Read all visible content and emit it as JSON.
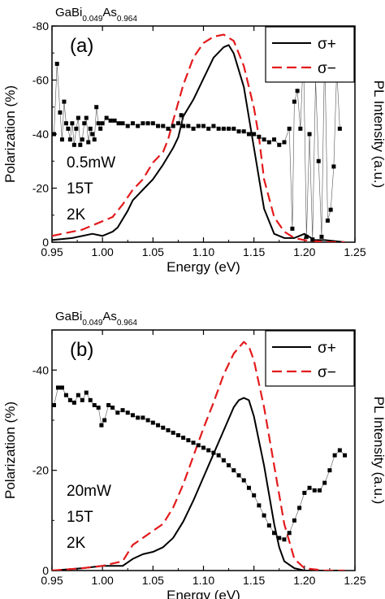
{
  "chart_data": [
    {
      "type": "line",
      "panel": "(a)",
      "title": {
        "base1": "GaBi",
        "sub1": "0.049",
        "base2": "As",
        "sub2": "0.964"
      },
      "conditions": [
        "0.5mW",
        "15T",
        "2K"
      ],
      "xlabel": "Energy (eV)",
      "ylabel": "Polarization (%)",
      "ylabel_right": "PL Intensity (a.u.)",
      "xlim": [
        0.95,
        1.25
      ],
      "ylim": [
        0,
        -80
      ],
      "xticks": [
        "0.95",
        "1.00",
        "1.05",
        "1.10",
        "1.15",
        "1.20",
        "1.25"
      ],
      "yticks": [
        "0",
        "-20",
        "-40",
        "-60",
        "-80"
      ],
      "legend": {
        "placement": "top-right",
        "items": [
          "σ+",
          "σ−"
        ]
      },
      "series": [
        {
          "name": "σ+",
          "axis": "right",
          "style": "solid",
          "color": "#000000",
          "x": [
            0.95,
            0.97,
            0.99,
            1.0,
            1.01,
            1.015,
            1.02,
            1.025,
            1.03,
            1.04,
            1.05,
            1.06,
            1.07,
            1.075,
            1.08,
            1.09,
            1.1,
            1.11,
            1.12,
            1.125,
            1.13,
            1.14,
            1.15,
            1.16,
            1.17,
            1.18,
            1.19,
            1.2,
            1.21,
            1.22,
            1.24
          ],
          "values": [
            0.01,
            0.02,
            0.04,
            0.03,
            0.05,
            0.07,
            0.11,
            0.15,
            0.2,
            0.25,
            0.3,
            0.37,
            0.45,
            0.5,
            0.6,
            0.68,
            0.78,
            0.88,
            0.93,
            0.94,
            0.9,
            0.74,
            0.45,
            0.16,
            0.04,
            0.02,
            0.02,
            0.04,
            0.01,
            0.01,
            0.0
          ]
        },
        {
          "name": "σ−",
          "axis": "right",
          "style": "dashed",
          "color": "#e31a1c",
          "x": [
            0.95,
            0.98,
            1.0,
            1.01,
            1.02,
            1.03,
            1.04,
            1.05,
            1.06,
            1.065,
            1.07,
            1.08,
            1.09,
            1.1,
            1.11,
            1.12,
            1.13,
            1.14,
            1.15,
            1.155,
            1.16,
            1.17,
            1.18,
            1.19,
            1.2,
            1.22,
            1.24
          ],
          "values": [
            0.03,
            0.06,
            0.1,
            0.12,
            0.18,
            0.25,
            0.3,
            0.38,
            0.43,
            0.49,
            0.58,
            0.75,
            0.88,
            0.95,
            0.98,
            0.99,
            0.96,
            0.84,
            0.64,
            0.5,
            0.3,
            0.12,
            0.05,
            0.02,
            0.01,
            0.0,
            0.0
          ]
        },
        {
          "name": "Polarization",
          "axis": "left",
          "style": "markers",
          "color": "#000000",
          "x": [
            0.952,
            0.955,
            0.958,
            0.96,
            0.962,
            0.964,
            0.966,
            0.968,
            0.97,
            0.972,
            0.974,
            0.976,
            0.978,
            0.98,
            0.982,
            0.984,
            0.986,
            0.988,
            0.99,
            0.992,
            0.994,
            0.996,
            0.998,
            1.0,
            1.004,
            1.008,
            1.012,
            1.016,
            1.02,
            1.025,
            1.03,
            1.035,
            1.04,
            1.045,
            1.05,
            1.055,
            1.06,
            1.065,
            1.07,
            1.075,
            1.078,
            1.08,
            1.085,
            1.09,
            1.095,
            1.1,
            1.105,
            1.11,
            1.115,
            1.12,
            1.125,
            1.13,
            1.135,
            1.14,
            1.145,
            1.15,
            1.155,
            1.16,
            1.165,
            1.17,
            1.175,
            1.18,
            1.185,
            1.188,
            1.19,
            1.193,
            1.196,
            1.199,
            1.202,
            1.205,
            1.208,
            1.211,
            1.214,
            1.217,
            1.22,
            1.223,
            1.226,
            1.229,
            1.232,
            1.235
          ],
          "values": [
            -40,
            -66,
            -48,
            -38,
            -52,
            -44,
            -42,
            -38,
            -44,
            -36,
            -42,
            -46,
            -36,
            -38,
            -44,
            -46,
            -37,
            -42,
            -40,
            -38,
            -50,
            -44,
            -42,
            -44,
            -46,
            -45,
            -45,
            -44,
            -44,
            -43,
            -44,
            -43,
            -44,
            -44,
            -44,
            -43,
            -43,
            -42,
            -43,
            -44,
            -47,
            -43,
            -43,
            -42,
            -43,
            -43,
            -42,
            -43,
            -42,
            -42,
            -42,
            -42,
            -41,
            -41,
            -40,
            -40,
            -39,
            -38,
            -37,
            -38,
            -36,
            -37,
            -42,
            -5,
            -52,
            -56,
            -42,
            -70,
            -2,
            -40,
            -1,
            -60,
            -30,
            -2,
            -72,
            -8,
            -12,
            -28,
            -64,
            -42
          ]
        }
      ]
    },
    {
      "type": "line",
      "panel": "(b)",
      "title": {
        "base1": "GaBi",
        "sub1": "0.049",
        "base2": "As",
        "sub2": "0.964"
      },
      "conditions": [
        "20mW",
        "15T",
        "2K"
      ],
      "xlabel": "Energy (eV)",
      "ylabel": "Polarization (%)",
      "ylabel_right": "PL Intensity (a.u.)",
      "xlim": [
        0.95,
        1.25
      ],
      "ylim": [
        0,
        -48
      ],
      "xticks": [
        "0.95",
        "1.00",
        "1.05",
        "1.10",
        "1.15",
        "1.20",
        "1.25"
      ],
      "yticks": [
        "0",
        "-20",
        "-40"
      ],
      "legend": {
        "placement": "top-right",
        "items": [
          "σ+",
          "σ−"
        ]
      },
      "series": [
        {
          "name": "σ+",
          "axis": "right",
          "style": "solid",
          "color": "#000000",
          "x": [
            0.95,
            0.98,
            1.0,
            1.02,
            1.03,
            1.04,
            1.05,
            1.06,
            1.07,
            1.08,
            1.09,
            1.1,
            1.11,
            1.12,
            1.13,
            1.135,
            1.14,
            1.145,
            1.15,
            1.16,
            1.17,
            1.175,
            1.18,
            1.19,
            1.2,
            1.22,
            1.24
          ],
          "values": [
            0.0,
            0.01,
            0.02,
            0.02,
            0.05,
            0.07,
            0.08,
            0.1,
            0.14,
            0.21,
            0.3,
            0.4,
            0.5,
            0.6,
            0.7,
            0.73,
            0.74,
            0.73,
            0.66,
            0.45,
            0.2,
            0.1,
            0.04,
            0.01,
            0.0,
            0.0,
            0.0
          ]
        },
        {
          "name": "σ−",
          "axis": "right",
          "style": "dashed",
          "color": "#e31a1c",
          "x": [
            0.95,
            0.98,
            1.0,
            1.02,
            1.03,
            1.04,
            1.05,
            1.06,
            1.07,
            1.08,
            1.09,
            1.1,
            1.11,
            1.12,
            1.13,
            1.14,
            1.145,
            1.15,
            1.16,
            1.17,
            1.18,
            1.19,
            1.2,
            1.22,
            1.24
          ],
          "values": [
            0.0,
            0.01,
            0.02,
            0.04,
            0.11,
            0.14,
            0.17,
            0.2,
            0.27,
            0.37,
            0.49,
            0.61,
            0.72,
            0.84,
            0.93,
            0.98,
            0.96,
            0.9,
            0.7,
            0.45,
            0.2,
            0.05,
            0.01,
            0.0,
            0.0
          ]
        },
        {
          "name": "Polarization",
          "axis": "left",
          "style": "markers",
          "color": "#000000",
          "x": [
            0.952,
            0.956,
            0.96,
            0.964,
            0.968,
            0.972,
            0.976,
            0.98,
            0.984,
            0.988,
            0.992,
            0.996,
            0.999,
            1.002,
            1.006,
            1.01,
            1.015,
            1.02,
            1.025,
            1.03,
            1.035,
            1.04,
            1.045,
            1.05,
            1.055,
            1.06,
            1.065,
            1.07,
            1.075,
            1.08,
            1.085,
            1.09,
            1.095,
            1.1,
            1.105,
            1.11,
            1.115,
            1.12,
            1.125,
            1.13,
            1.135,
            1.14,
            1.145,
            1.15,
            1.155,
            1.16,
            1.165,
            1.17,
            1.175,
            1.18,
            1.185,
            1.19,
            1.195,
            1.2,
            1.205,
            1.21,
            1.215,
            1.22,
            1.225,
            1.23,
            1.235,
            1.24
          ],
          "values": [
            -33,
            -36.5,
            -36.5,
            -35,
            -34,
            -33.5,
            -35,
            -34,
            -35.5,
            -34,
            -33,
            -32.5,
            -29,
            -30,
            -33,
            -32.5,
            -31.5,
            -32,
            -31.5,
            -31,
            -30.5,
            -30.5,
            -30,
            -29.5,
            -29,
            -28.5,
            -28,
            -27.5,
            -27,
            -26.5,
            -26,
            -25.5,
            -25,
            -24.5,
            -24,
            -23.5,
            -23,
            -22,
            -21,
            -20,
            -19,
            -18,
            -16.5,
            -15,
            -13,
            -11,
            -9,
            -7.5,
            -6.5,
            -6.2,
            -7.5,
            -10,
            -12.5,
            -15.5,
            -16.5,
            -16,
            -16,
            -17.5,
            -20,
            -23,
            -24,
            -23
          ]
        }
      ]
    }
  ]
}
